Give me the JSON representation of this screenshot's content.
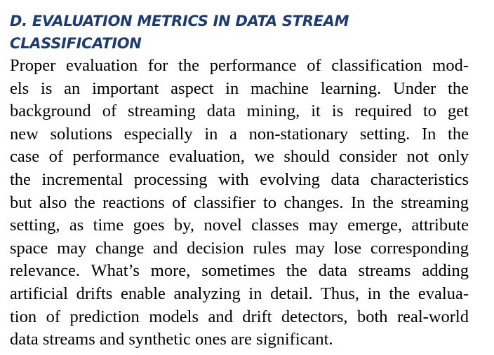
{
  "section": {
    "heading_lines": [
      "D. EVALUATION METRICS IN DATA STREAM",
      "CLASSIFICATION"
    ],
    "paragraph_lines": [
      "Proper evaluation for the performance of classification mod-",
      "els is an important aspect in machine learning. Under the",
      "background of streaming data mining, it is required to get",
      "new solutions especially in a non-stationary setting. In the",
      "case of performance evaluation, we should consider not only",
      "the incremental processing with evolving data characteristics",
      "but also the reactions of classifier to changes. In the streaming",
      "setting, as time goes by, novel classes may emerge, attribute",
      "space may change and decision rules may lose corresponding",
      "relevance. What’s more, sometimes the data streams adding",
      "artificial drifts enable analyzing in detail. Thus, in the evalua-",
      "tion of prediction models and drift detectors, both real-world",
      "data streams and synthetic ones are significant."
    ]
  },
  "colors": {
    "heading": "#1f3c6e",
    "body_text": "#000000"
  }
}
